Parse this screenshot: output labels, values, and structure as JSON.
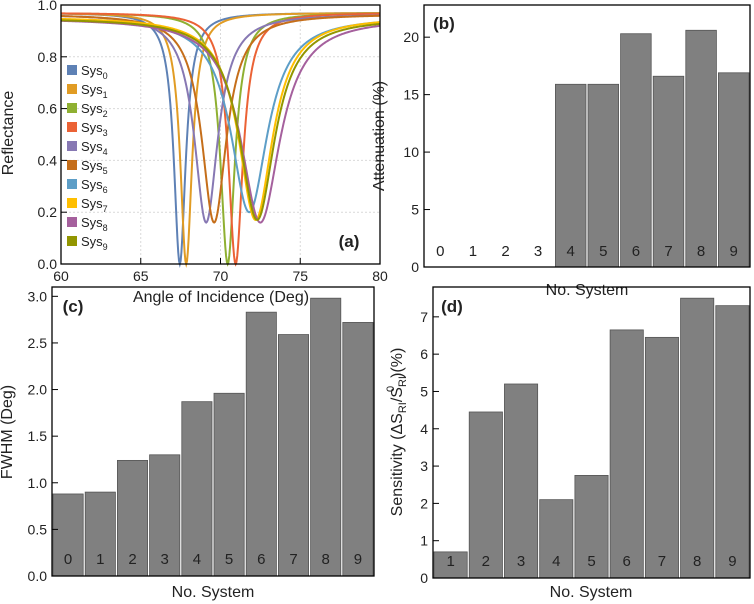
{
  "chart_data": [
    {
      "panel": "(a)",
      "type": "line",
      "xlabel": "Angle of Incidence (Deg)",
      "ylabel": "Reflectance",
      "xlim": [
        60,
        80
      ],
      "ylim": [
        0.0,
        1.0
      ],
      "xticks": [
        "60",
        "65",
        "70",
        "75",
        "80"
      ],
      "yticks": [
        "0.0",
        "0.2",
        "0.4",
        "0.6",
        "0.8",
        "1.0"
      ],
      "grid": true,
      "legend_position": "left",
      "series": [
        {
          "name": "Sys",
          "sub": "0",
          "color": "#5e81b5",
          "center": 67.45,
          "min": 0.0,
          "width": 0.45,
          "base": 0.97
        },
        {
          "name": "Sys",
          "sub": "1",
          "color": "#e19c24",
          "center": 67.85,
          "min": 0.0,
          "width": 0.45,
          "base": 0.97
        },
        {
          "name": "Sys",
          "sub": "2",
          "color": "#8fb032",
          "center": 70.45,
          "min": 0.0,
          "width": 0.55,
          "base": 0.97
        },
        {
          "name": "Sys",
          "sub": "3",
          "color": "#eb6235",
          "center": 70.95,
          "min": 0.0,
          "width": 0.55,
          "base": 0.97
        },
        {
          "name": "Sys",
          "sub": "4",
          "color": "#8778b3",
          "center": 69.1,
          "min": 0.16,
          "width": 0.9,
          "base": 0.965
        },
        {
          "name": "Sys",
          "sub": "5",
          "color": "#c56e1a",
          "center": 69.6,
          "min": 0.16,
          "width": 0.95,
          "base": 0.965
        },
        {
          "name": "Sys",
          "sub": "6",
          "color": "#5d9ec7",
          "center": 71.8,
          "min": 0.2,
          "width": 1.4,
          "base": 0.955
        },
        {
          "name": "Sys",
          "sub": "7",
          "color": "#ffbf00",
          "center": 72.2,
          "min": 0.17,
          "width": 1.3,
          "base": 0.955
        },
        {
          "name": "Sys",
          "sub": "8",
          "color": "#a5609d",
          "center": 72.5,
          "min": 0.16,
          "width": 1.5,
          "base": 0.95
        },
        {
          "name": "Sys",
          "sub": "9",
          "color": "#929600",
          "center": 72.3,
          "min": 0.17,
          "width": 1.35,
          "base": 0.95
        }
      ]
    },
    {
      "panel": "(b)",
      "type": "bar",
      "xlabel": "No. System",
      "ylabel": "Attenuation (%)",
      "ylim": [
        0,
        22.8
      ],
      "yticks": [
        "0",
        "5",
        "10",
        "15",
        "20"
      ],
      "categories": [
        "0",
        "1",
        "2",
        "3",
        "4",
        "5",
        "6",
        "7",
        "8",
        "9"
      ],
      "values": [
        0,
        0,
        0,
        0,
        15.9,
        15.9,
        20.3,
        16.6,
        20.6,
        16.9
      ]
    },
    {
      "panel": "(c)",
      "type": "bar",
      "xlabel": "No. System",
      "ylabel": "FWHM (Deg)",
      "ylim": [
        0,
        3.1
      ],
      "yticks": [
        "0.0",
        "0.5",
        "1.0",
        "1.5",
        "2.0",
        "2.5",
        "3.0"
      ],
      "categories": [
        "0",
        "1",
        "2",
        "3",
        "4",
        "5",
        "6",
        "7",
        "8",
        "9"
      ],
      "values": [
        0.88,
        0.9,
        1.24,
        1.3,
        1.87,
        1.96,
        2.83,
        2.59,
        2.98,
        2.72
      ]
    },
    {
      "panel": "(d)",
      "type": "bar",
      "xlabel": "No. System",
      "ylabel": "Sensitivity (ΔS",
      "ylabel_parts": [
        "Sensitivity (ΔS",
        "RI",
        "/S",
        "RI",
        "0",
        ")(%)"
      ],
      "ylim": [
        0,
        7.8
      ],
      "yticks": [
        "0",
        "1",
        "2",
        "3",
        "4",
        "5",
        "6",
        "7"
      ],
      "categories": [
        "1",
        "2",
        "3",
        "4",
        "5",
        "6",
        "7",
        "8",
        "9"
      ],
      "values": [
        0.7,
        4.45,
        5.2,
        2.1,
        2.75,
        6.65,
        6.45,
        7.5,
        7.3
      ]
    }
  ]
}
